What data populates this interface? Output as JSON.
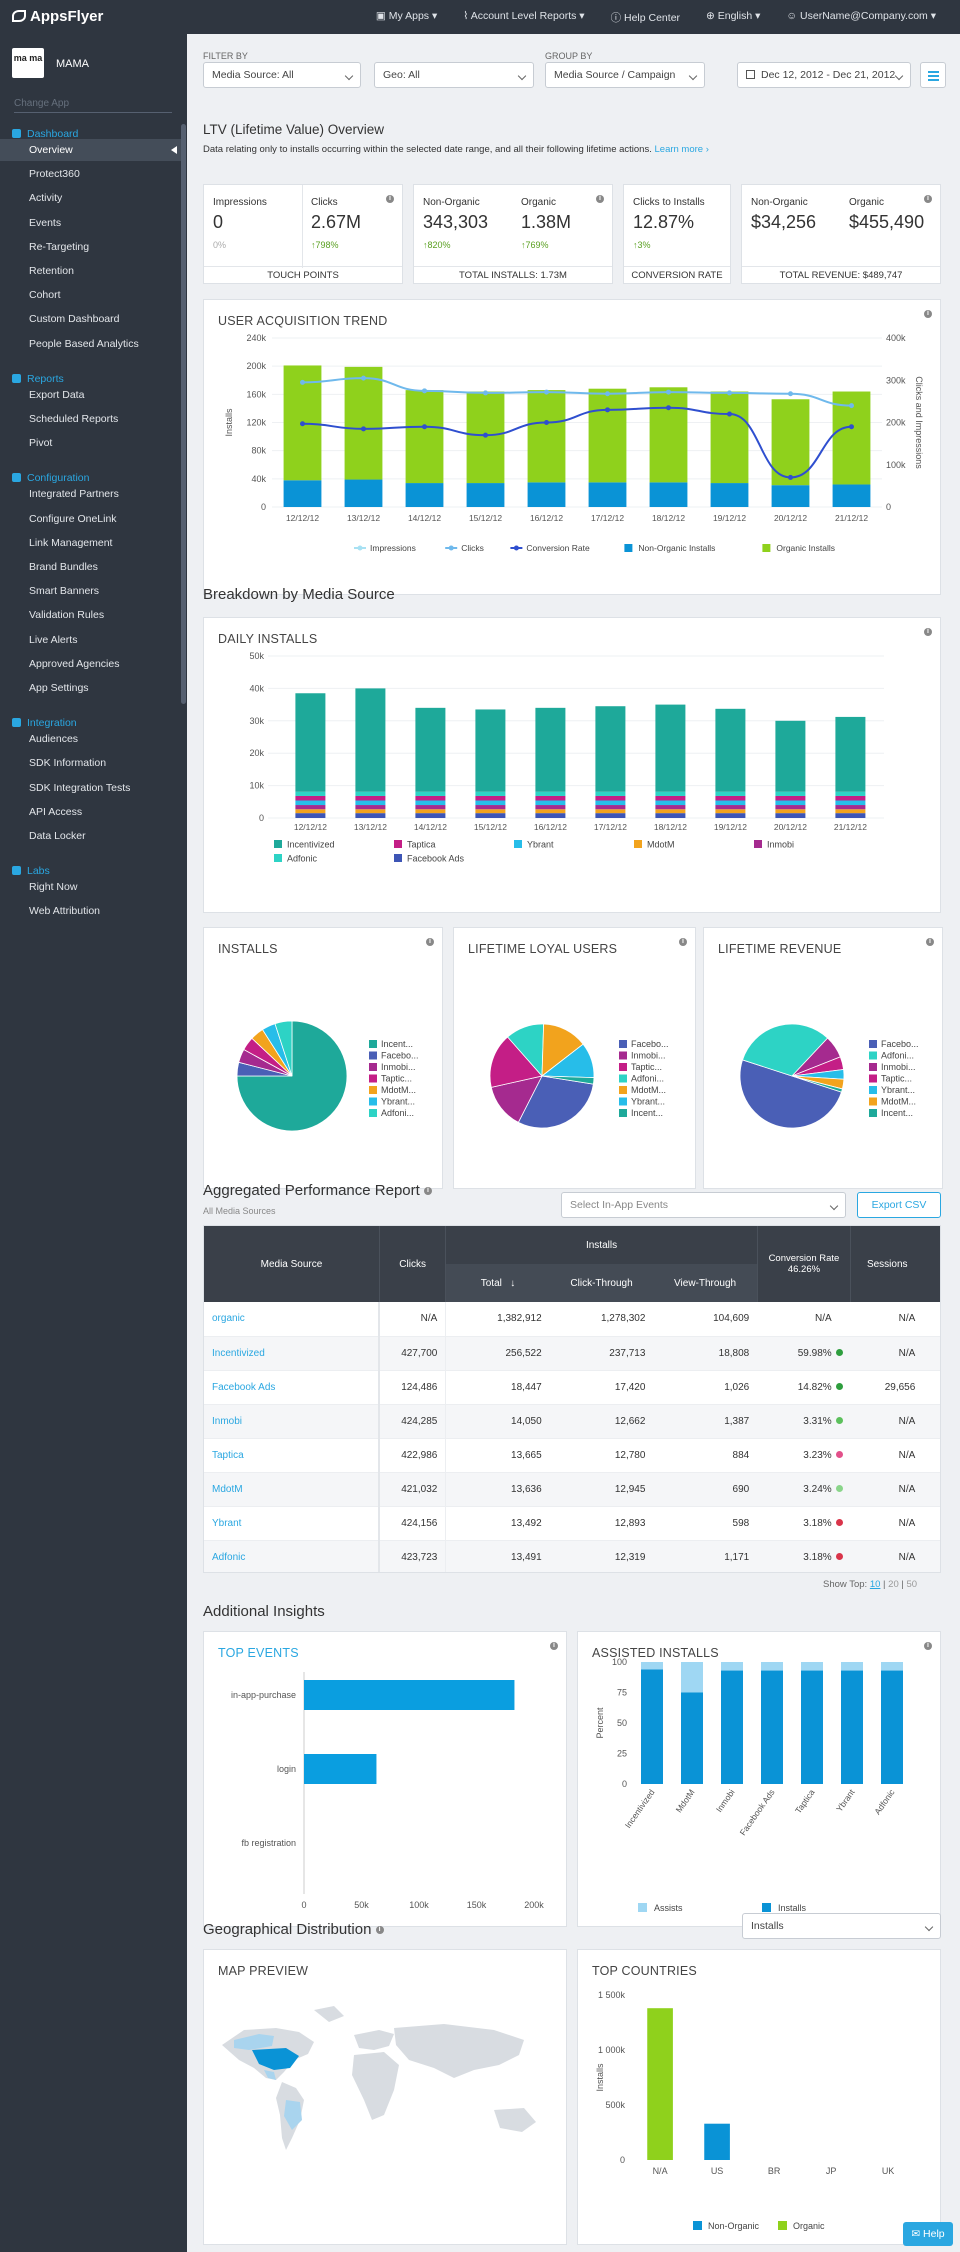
{
  "topbar": {
    "logo": "AppsFlyer",
    "nav": [
      "My Apps",
      "Account Level Reports",
      "Help Center",
      "English",
      "UserName@Company.com"
    ]
  },
  "sidebar": {
    "app_icon_text": "ma ma",
    "app_name": "MAMA",
    "change_app": "Change App",
    "sections": [
      {
        "label": "Dashboard",
        "items": [
          "Overview",
          "Protect360",
          "Activity",
          "Events",
          "Re-Targeting",
          "Retention",
          "Cohort",
          "Custom Dashboard",
          "People Based Analytics"
        ]
      },
      {
        "label": "Reports",
        "items": [
          "Export Data",
          "Scheduled Reports",
          "Pivot"
        ]
      },
      {
        "label": "Configuration",
        "items": [
          "Integrated Partners",
          "Configure OneLink",
          "Link Management",
          "Brand Bundles",
          "Smart Banners",
          "Validation Rules",
          "Live Alerts",
          "Approved Agencies",
          "App Settings"
        ]
      },
      {
        "label": "Integration",
        "items": [
          "Audiences",
          "SDK Information",
          "SDK Integration Tests",
          "API Access",
          "Data Locker"
        ]
      },
      {
        "label": "Labs",
        "items": [
          "Right Now",
          "Web Attribution"
        ]
      }
    ]
  },
  "filters": {
    "filter_by_label": "FILTER BY",
    "group_by_label": "GROUP BY",
    "media_source": "Media Source: All",
    "geo": "Geo: All",
    "group_by": "Media Source / Campaign",
    "date_range": "Dec 12, 2012 - Dec 21, 2012"
  },
  "ltv": {
    "title": "LTV (Lifetime Value) Overview",
    "description": "Data relating only to installs occurring within the selected date range, and all their following lifetime actions.",
    "learn_more": "Learn more ›"
  },
  "kpis": {
    "touch": {
      "impressions_label": "Impressions",
      "impressions": "0",
      "impressions_pct": "0%",
      "clicks_label": "Clicks",
      "clicks": "2.67M",
      "clicks_growth": "↑798%",
      "footer": "TOUCH POINTS"
    },
    "installs": {
      "nonorganic_label": "Non-Organic",
      "nonorganic": "343,303",
      "nonorganic_growth": "↑820%",
      "organic_label": "Organic",
      "organic": "1.38M",
      "organic_growth": "↑769%",
      "footer": "TOTAL INSTALLS: 1.73M"
    },
    "conversion": {
      "label": "Clicks to Installs",
      "value": "12.87%",
      "growth": "↑3%",
      "footer": "CONVERSION RATE"
    },
    "revenue": {
      "nonorganic_label": "Non-Organic",
      "nonorganic": "$34,256",
      "organic_label": "Organic",
      "organic": "$455,490",
      "footer": "TOTAL REVENUE: $489,747"
    }
  },
  "colors": {
    "organic": "#8fd11c",
    "nonorganic": "#0a93d6",
    "clicks": "#6fb9ec",
    "impressions": "#a8e1f3",
    "conversion": "#2f4fcf"
  },
  "charts": {
    "acquisition": {
      "title": "USER ACQUISITION TREND",
      "chart_data": {
        "type": "bar",
        "categories": [
          "12/12/12",
          "13/12/12",
          "14/12/12",
          "15/12/12",
          "16/12/12",
          "17/12/12",
          "18/12/12",
          "19/12/12",
          "20/12/12",
          "21/12/12"
        ],
        "ylabel": "Installs",
        "ylabel_right": "Clicks and Impressions",
        "y_ticks": [
          "0",
          "40k",
          "80k",
          "120k",
          "160k",
          "200k",
          "240k"
        ],
        "y_right_ticks": [
          "0",
          "100k",
          "200k",
          "300k",
          "400k"
        ],
        "ylim": [
          0,
          240000
        ],
        "ylim_right": [
          0,
          400000
        ],
        "series": [
          {
            "name": "Non-Organic Installs",
            "values": [
              38000,
              39000,
              34000,
              34000,
              35000,
              35000,
              35000,
              34000,
              31000,
              32000
            ]
          },
          {
            "name": "Organic Installs",
            "values": [
              163000,
              160000,
              132000,
              130000,
              131000,
              133000,
              135000,
              130000,
              122000,
              132000
            ]
          },
          {
            "name": "Impressions",
            "values": [
              0,
              0,
              0,
              0,
              0,
              0,
              0,
              0,
              0,
              0
            ]
          },
          {
            "name": "Clicks",
            "values": [
              295000,
              305000,
              275000,
              270000,
              272000,
              268000,
              272000,
              270000,
              268000,
              240000
            ]
          },
          {
            "name": "Conversion Rate",
            "values": [
              197000,
              185000,
              190000,
              170000,
              200000,
              230000,
              235000,
              220000,
              70000,
              190000
            ]
          }
        ],
        "legend": [
          "Impressions",
          "Clicks",
          "Conversion Rate",
          "Non-Organic Installs",
          "Organic Installs"
        ]
      }
    },
    "breakdown_title": "Breakdown by Media Source",
    "daily": {
      "title": "DAILY INSTALLS",
      "chart_data": {
        "type": "bar",
        "categories": [
          "12/12/12",
          "13/12/12",
          "14/12/12",
          "15/12/12",
          "16/12/12",
          "17/12/12",
          "18/12/12",
          "19/12/12",
          "20/12/12",
          "21/12/12"
        ],
        "y_ticks": [
          "0",
          "10k",
          "20k",
          "30k",
          "40k",
          "50k"
        ],
        "ylim": [
          0,
          50000
        ],
        "totals": [
          38500,
          40000,
          34000,
          33500,
          34000,
          34500,
          35000,
          33700,
          30000,
          31200
        ],
        "legend": [
          "Incentivized",
          "Taptica",
          "Ybrant",
          "MdotM",
          "Inmobi",
          "Adfonic",
          "Facebook Ads"
        ]
      }
    },
    "pies": [
      {
        "title": "INSTALLS",
        "chart_data": {
          "type": "pie",
          "labels": [
            "Incent...",
            "Facebo...",
            "Inmobi...",
            "Taptic...",
            "MdotM...",
            "Ybrant...",
            "Adfoni..."
          ],
          "values": [
            75,
            4,
            4,
            4,
            4,
            4,
            5
          ]
        }
      },
      {
        "title": "LIFETIME LOYAL USERS",
        "chart_data": {
          "type": "pie",
          "labels": [
            "Facebo...",
            "Inmobi...",
            "Taptic...",
            "Adfoni...",
            "MdotM...",
            "Ybrant...",
            "Incent..."
          ],
          "values": [
            30,
            14,
            17,
            12,
            14,
            11,
            2
          ]
        }
      },
      {
        "title": "LIFETIME REVENUE",
        "chart_data": {
          "type": "pie",
          "labels": [
            "Facebo...",
            "Adfoni...",
            "Inmobi...",
            "Taptic...",
            "Ybrant...",
            "MdotM...",
            "Incent..."
          ],
          "values": [
            50,
            32,
            7,
            4,
            3,
            3,
            1
          ]
        }
      }
    ]
  },
  "perf": {
    "title": "Aggregated Performance Report",
    "subtitle": "All Media Sources",
    "events_placeholder": "Select In-App Events",
    "export": "Export CSV",
    "headers": {
      "source": "Media Source",
      "clicks": "Clicks",
      "installs": "Installs",
      "total": "Total",
      "ct": "Click-Through",
      "vt": "View-Through",
      "conv": "Conversion Rate",
      "conv_val": "46.26%",
      "sessions": "Sessions"
    },
    "rows": [
      {
        "source": "organic",
        "clicks": "N/A",
        "total": "1,382,912",
        "ct": "1,278,302",
        "vt": "104,609",
        "conv": "N/A",
        "dot": "",
        "sessions": "N/A"
      },
      {
        "source": "Incentivized",
        "clicks": "427,700",
        "total": "256,522",
        "ct": "237,713",
        "vt": "18,808",
        "conv": "59.98%",
        "dot": "#2e9e3e",
        "sessions": "N/A"
      },
      {
        "source": "Facebook Ads",
        "clicks": "124,486",
        "total": "18,447",
        "ct": "17,420",
        "vt": "1,026",
        "conv": "14.82%",
        "dot": "#2e9e3e",
        "sessions": "29,656"
      },
      {
        "source": "Inmobi",
        "clicks": "424,285",
        "total": "14,050",
        "ct": "12,662",
        "vt": "1,387",
        "conv": "3.31%",
        "dot": "#5cc05c",
        "sessions": "N/A"
      },
      {
        "source": "Taptica",
        "clicks": "422,986",
        "total": "13,665",
        "ct": "12,780",
        "vt": "884",
        "conv": "3.23%",
        "dot": "#e2508a",
        "sessions": "N/A"
      },
      {
        "source": "MdotM",
        "clicks": "421,032",
        "total": "13,636",
        "ct": "12,945",
        "vt": "690",
        "conv": "3.24%",
        "dot": "#8ad58a",
        "sessions": "N/A"
      },
      {
        "source": "Ybrant",
        "clicks": "424,156",
        "total": "13,492",
        "ct": "12,893",
        "vt": "598",
        "conv": "3.18%",
        "dot": "#d9344a",
        "sessions": "N/A"
      },
      {
        "source": "Adfonic",
        "clicks": "423,723",
        "total": "13,491",
        "ct": "12,319",
        "vt": "1,171",
        "conv": "3.18%",
        "dot": "#d9344a",
        "sessions": "N/A"
      }
    ],
    "show_top_label": "Show Top:",
    "show_top": [
      "10",
      "20",
      "50"
    ]
  },
  "insights": {
    "title": "Additional Insights",
    "top_events": {
      "title": "TOP EVENTS",
      "chart_data": {
        "type": "bar",
        "orientation": "horizontal",
        "categories": [
          "in-app-purchase",
          "login",
          "fb registration"
        ],
        "values": [
          183000,
          63000,
          0
        ],
        "x_ticks": [
          "0",
          "50k",
          "100k",
          "150k",
          "200k"
        ],
        "xlim": [
          0,
          200000
        ]
      }
    },
    "assisted": {
      "title": "ASSISTED INSTALLS",
      "chart_data": {
        "type": "bar",
        "stacked": true,
        "categories": [
          "Incentivized",
          "MdotM",
          "Inmobi",
          "Facebook Ads",
          "Taptica",
          "Ybrant",
          "Adfonic"
        ],
        "ylabel": "Percent",
        "y_ticks": [
          "0",
          "25",
          "50",
          "75",
          "100"
        ],
        "ylim": [
          0,
          100
        ],
        "series": [
          {
            "name": "Installs",
            "values": [
              94,
              75,
              93,
              93,
              93,
              93,
              93
            ]
          },
          {
            "name": "Assists",
            "values": [
              6,
              25,
              7,
              7,
              7,
              7,
              7
            ]
          }
        ]
      }
    }
  },
  "geo": {
    "title": "Geographical Distribution",
    "select": "Installs",
    "map_title": "MAP PREVIEW",
    "countries": {
      "title": "TOP COUNTRIES",
      "chart_data": {
        "type": "bar",
        "categories": [
          "N/A",
          "US",
          "BR",
          "JP",
          "UK"
        ],
        "ylabel": "Installs",
        "y_ticks": [
          "0",
          "500k",
          "1 000k",
          "1 500k"
        ],
        "ylim": [
          0,
          1500000
        ],
        "series": [
          {
            "name": "Non-Organic",
            "values": [
              0,
              330000,
              0,
              0,
              0
            ]
          },
          {
            "name": "Organic",
            "values": [
              1380000,
              0,
              0,
              0,
              0
            ]
          }
        ]
      }
    }
  },
  "help": "Help"
}
